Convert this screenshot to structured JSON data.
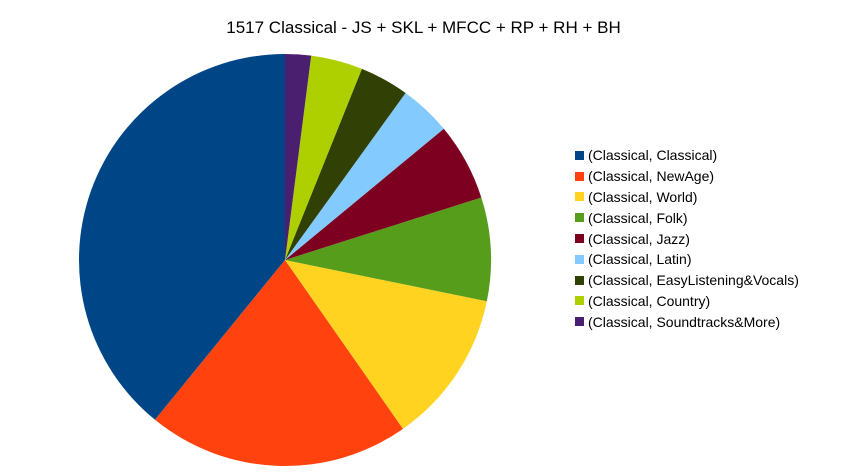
{
  "chart_data": {
    "type": "pie",
    "title": "1517 Classical - JS + SKL + MFCC + RP + RH + BH",
    "legend_position": "right",
    "start_angle_deg": 0,
    "direction": "counterclockwise",
    "slices": [
      {
        "label": "(Classical, Classical)",
        "value": 40.5,
        "color": "#004586"
      },
      {
        "label": "(Classical, NewAge)",
        "value": 21.3,
        "color": "#ff420e"
      },
      {
        "label": "(Classical, World)",
        "value": 12.5,
        "color": "#ffd320"
      },
      {
        "label": "(Classical, Folk)",
        "value": 8.4,
        "color": "#579d1c"
      },
      {
        "label": "(Classical, Jazz)",
        "value": 6.3,
        "color": "#7e0021"
      },
      {
        "label": "(Classical, Latin)",
        "value": 4.2,
        "color": "#83caff"
      },
      {
        "label": "(Classical, EasyListening&Vocals)",
        "value": 4.0,
        "color": "#314004"
      },
      {
        "label": "(Classical, Country)",
        "value": 4.2,
        "color": "#aecf00"
      },
      {
        "label": "(Classical, Soundtracks&More)",
        "value": 2.1,
        "color": "#4b1f6f"
      }
    ]
  }
}
